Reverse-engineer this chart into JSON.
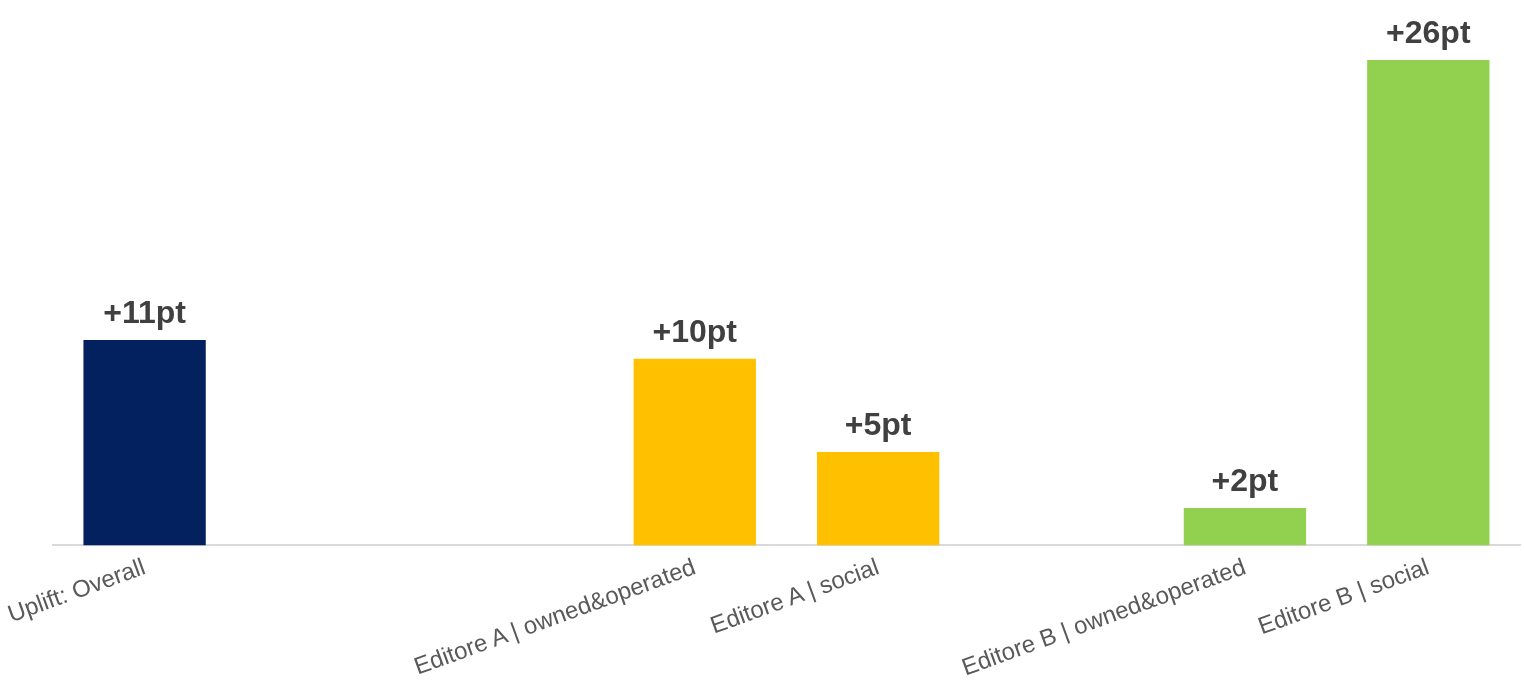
{
  "chart_data": {
    "type": "bar",
    "categories": [
      "Uplift: Overall",
      null,
      null,
      "Editore A | owned&operated",
      "Editore A | social",
      null,
      "Editore B | owned&operated",
      "Editore B | social"
    ],
    "values": [
      11,
      null,
      null,
      10,
      5,
      null,
      2,
      26
    ],
    "colors": [
      "#03205f",
      "#03205f",
      "#03205f",
      "#ffc000",
      "#ffc000",
      "#92d050",
      "#92d050",
      "#92d050"
    ],
    "value_labels": [
      "+11pt",
      null,
      null,
      "+10pt",
      "+5pt",
      null,
      "+2pt",
      "+26pt"
    ]
  }
}
